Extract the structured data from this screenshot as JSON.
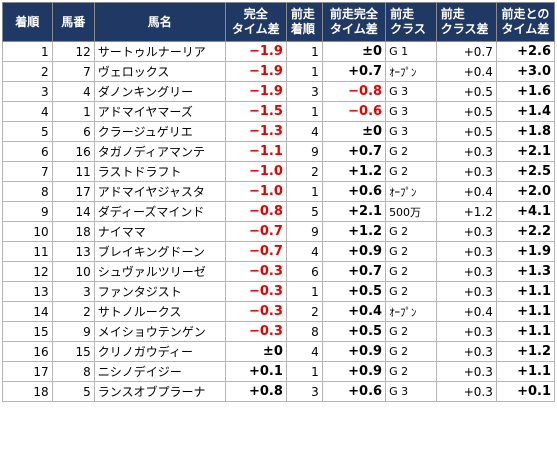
{
  "headers": {
    "rank": "着順",
    "num": "馬番",
    "name": "馬名",
    "diff_line1": "完全",
    "diff_line2": "タイム差",
    "prev_rank_line1": "前走",
    "prev_rank_line2": "着順",
    "prev_diff_line1": "前走完全",
    "prev_diff_line2": "タイム差",
    "prev_class_line1": "前走",
    "prev_class_line2": "クラス",
    "class_diff_line1": "前走",
    "class_diff_line2": "クラス差",
    "total_line1": "前走との",
    "total_line2": "タイム差"
  },
  "rows": [
    {
      "rank": "1",
      "num": "12",
      "name": "サートゥルナーリア",
      "diff": "−1.9",
      "prev_rank": "1",
      "prev_diff": "±0",
      "prev_class": "G 1",
      "class_diff": "+0.7",
      "total": "+2.6"
    },
    {
      "rank": "2",
      "num": "7",
      "name": "ヴェロックス",
      "diff": "−1.9",
      "prev_rank": "1",
      "prev_diff": "+0.7",
      "prev_class": "ｵｰﾌﾟﾝ",
      "class_diff": "+0.4",
      "total": "+3.0"
    },
    {
      "rank": "3",
      "num": "4",
      "name": "ダノンキングリー",
      "diff": "−1.9",
      "prev_rank": "3",
      "prev_diff": "−0.8",
      "prev_class": "G 3",
      "class_diff": "+0.5",
      "total": "+1.6"
    },
    {
      "rank": "4",
      "num": "1",
      "name": "アドマイヤマーズ",
      "diff": "−1.5",
      "prev_rank": "1",
      "prev_diff": "−0.6",
      "prev_class": "G 3",
      "class_diff": "+0.5",
      "total": "+1.4"
    },
    {
      "rank": "5",
      "num": "6",
      "name": "クラージュゲリエ",
      "diff": "−1.3",
      "prev_rank": "4",
      "prev_diff": "±0",
      "prev_class": "G 3",
      "class_diff": "+0.5",
      "total": "+1.8"
    },
    {
      "rank": "6",
      "num": "16",
      "name": "タガノディアマンテ",
      "diff": "−1.1",
      "prev_rank": "9",
      "prev_diff": "+0.7",
      "prev_class": "G 2",
      "class_diff": "+0.3",
      "total": "+2.1"
    },
    {
      "rank": "7",
      "num": "11",
      "name": "ラストドラフト",
      "diff": "−1.0",
      "prev_rank": "2",
      "prev_diff": "+1.2",
      "prev_class": "G 2",
      "class_diff": "+0.3",
      "total": "+2.5"
    },
    {
      "rank": "8",
      "num": "17",
      "name": "アドマイヤジャスタ",
      "diff": "−1.0",
      "prev_rank": "1",
      "prev_diff": "+0.6",
      "prev_class": "ｵｰﾌﾟﾝ",
      "class_diff": "+0.4",
      "total": "+2.0"
    },
    {
      "rank": "9",
      "num": "14",
      "name": "ダディーズマインド",
      "diff": "−0.8",
      "prev_rank": "5",
      "prev_diff": "+2.1",
      "prev_class": "500万",
      "class_diff": "+1.2",
      "total": "+4.1"
    },
    {
      "rank": "10",
      "num": "18",
      "name": "ナイママ",
      "diff": "−0.7",
      "prev_rank": "9",
      "prev_diff": "+1.2",
      "prev_class": "G 2",
      "class_diff": "+0.3",
      "total": "+2.2"
    },
    {
      "rank": "11",
      "num": "13",
      "name": "ブレイキングドーン",
      "diff": "−0.7",
      "prev_rank": "4",
      "prev_diff": "+0.9",
      "prev_class": "G 2",
      "class_diff": "+0.3",
      "total": "+1.9"
    },
    {
      "rank": "12",
      "num": "10",
      "name": "シュヴァルツリーゼ",
      "diff": "−0.3",
      "prev_rank": "6",
      "prev_diff": "+0.7",
      "prev_class": "G 2",
      "class_diff": "+0.3",
      "total": "+1.3"
    },
    {
      "rank": "13",
      "num": "3",
      "name": "ファンタジスト",
      "diff": "−0.3",
      "prev_rank": "1",
      "prev_diff": "+0.5",
      "prev_class": "G 2",
      "class_diff": "+0.3",
      "total": "+1.1"
    },
    {
      "rank": "14",
      "num": "2",
      "name": "サトノルークス",
      "diff": "−0.3",
      "prev_rank": "2",
      "prev_diff": "+0.4",
      "prev_class": "ｵｰﾌﾟﾝ",
      "class_diff": "+0.4",
      "total": "+1.1"
    },
    {
      "rank": "15",
      "num": "9",
      "name": "メイショウテンゲン",
      "diff": "−0.3",
      "prev_rank": "8",
      "prev_diff": "+0.5",
      "prev_class": "G 2",
      "class_diff": "+0.3",
      "total": "+1.1"
    },
    {
      "rank": "16",
      "num": "15",
      "name": "クリノガウディー",
      "diff": "±0",
      "prev_rank": "4",
      "prev_diff": "+0.9",
      "prev_class": "G 2",
      "class_diff": "+0.3",
      "total": "+1.2"
    },
    {
      "rank": "17",
      "num": "8",
      "name": "ニシノデイジー",
      "diff": "+0.1",
      "prev_rank": "1",
      "prev_diff": "+0.9",
      "prev_class": "G 2",
      "class_diff": "+0.3",
      "total": "+1.1"
    },
    {
      "rank": "18",
      "num": "5",
      "name": "ランスオブプラーナ",
      "diff": "+0.8",
      "prev_rank": "3",
      "prev_diff": "+0.6",
      "prev_class": "G 3",
      "class_diff": "+0.3",
      "total": "+0.1"
    }
  ],
  "colors": {
    "header_bg": "#1f3864",
    "negative": "#e60000"
  }
}
